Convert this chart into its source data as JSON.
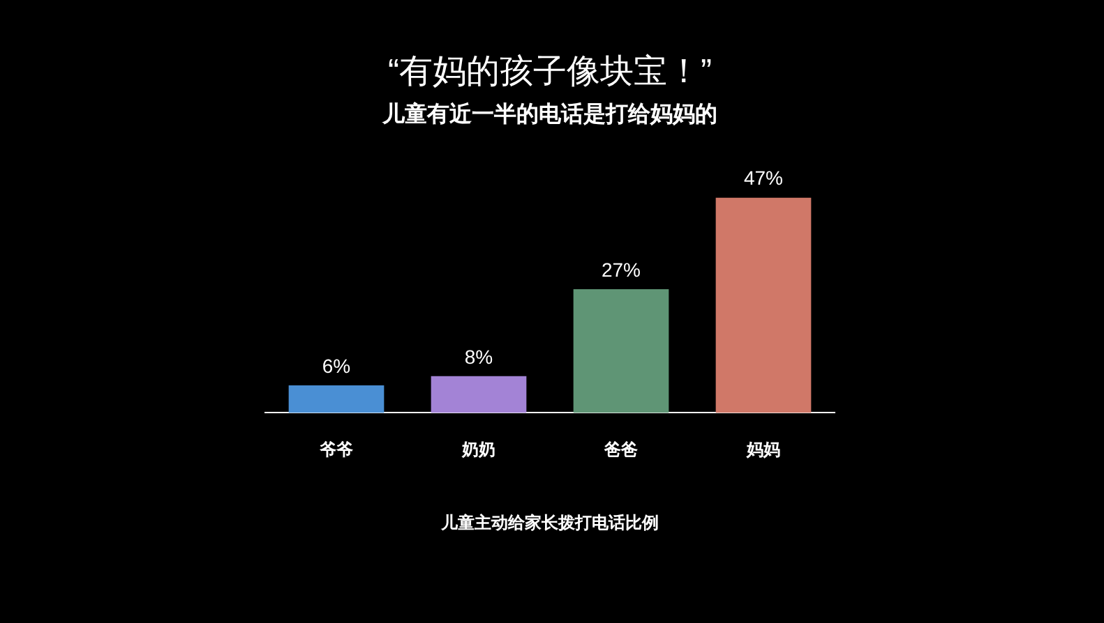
{
  "chart_data": {
    "type": "bar",
    "title": "“有妈的孩子像块宝！”",
    "subtitle": "儿童有近一半的电话是打给妈妈的",
    "xlabel": "儿童主动给家长拨打电话比例",
    "categories": [
      "爷爷",
      "奶奶",
      "爸爸",
      "妈妈"
    ],
    "values": [
      6,
      8,
      27,
      47
    ],
    "colors": [
      "#4a8fd4",
      "#a383d6",
      "#5f9575",
      "#d07868"
    ],
    "value_labels": [
      "6%",
      "8%",
      "27%",
      "47%"
    ]
  }
}
